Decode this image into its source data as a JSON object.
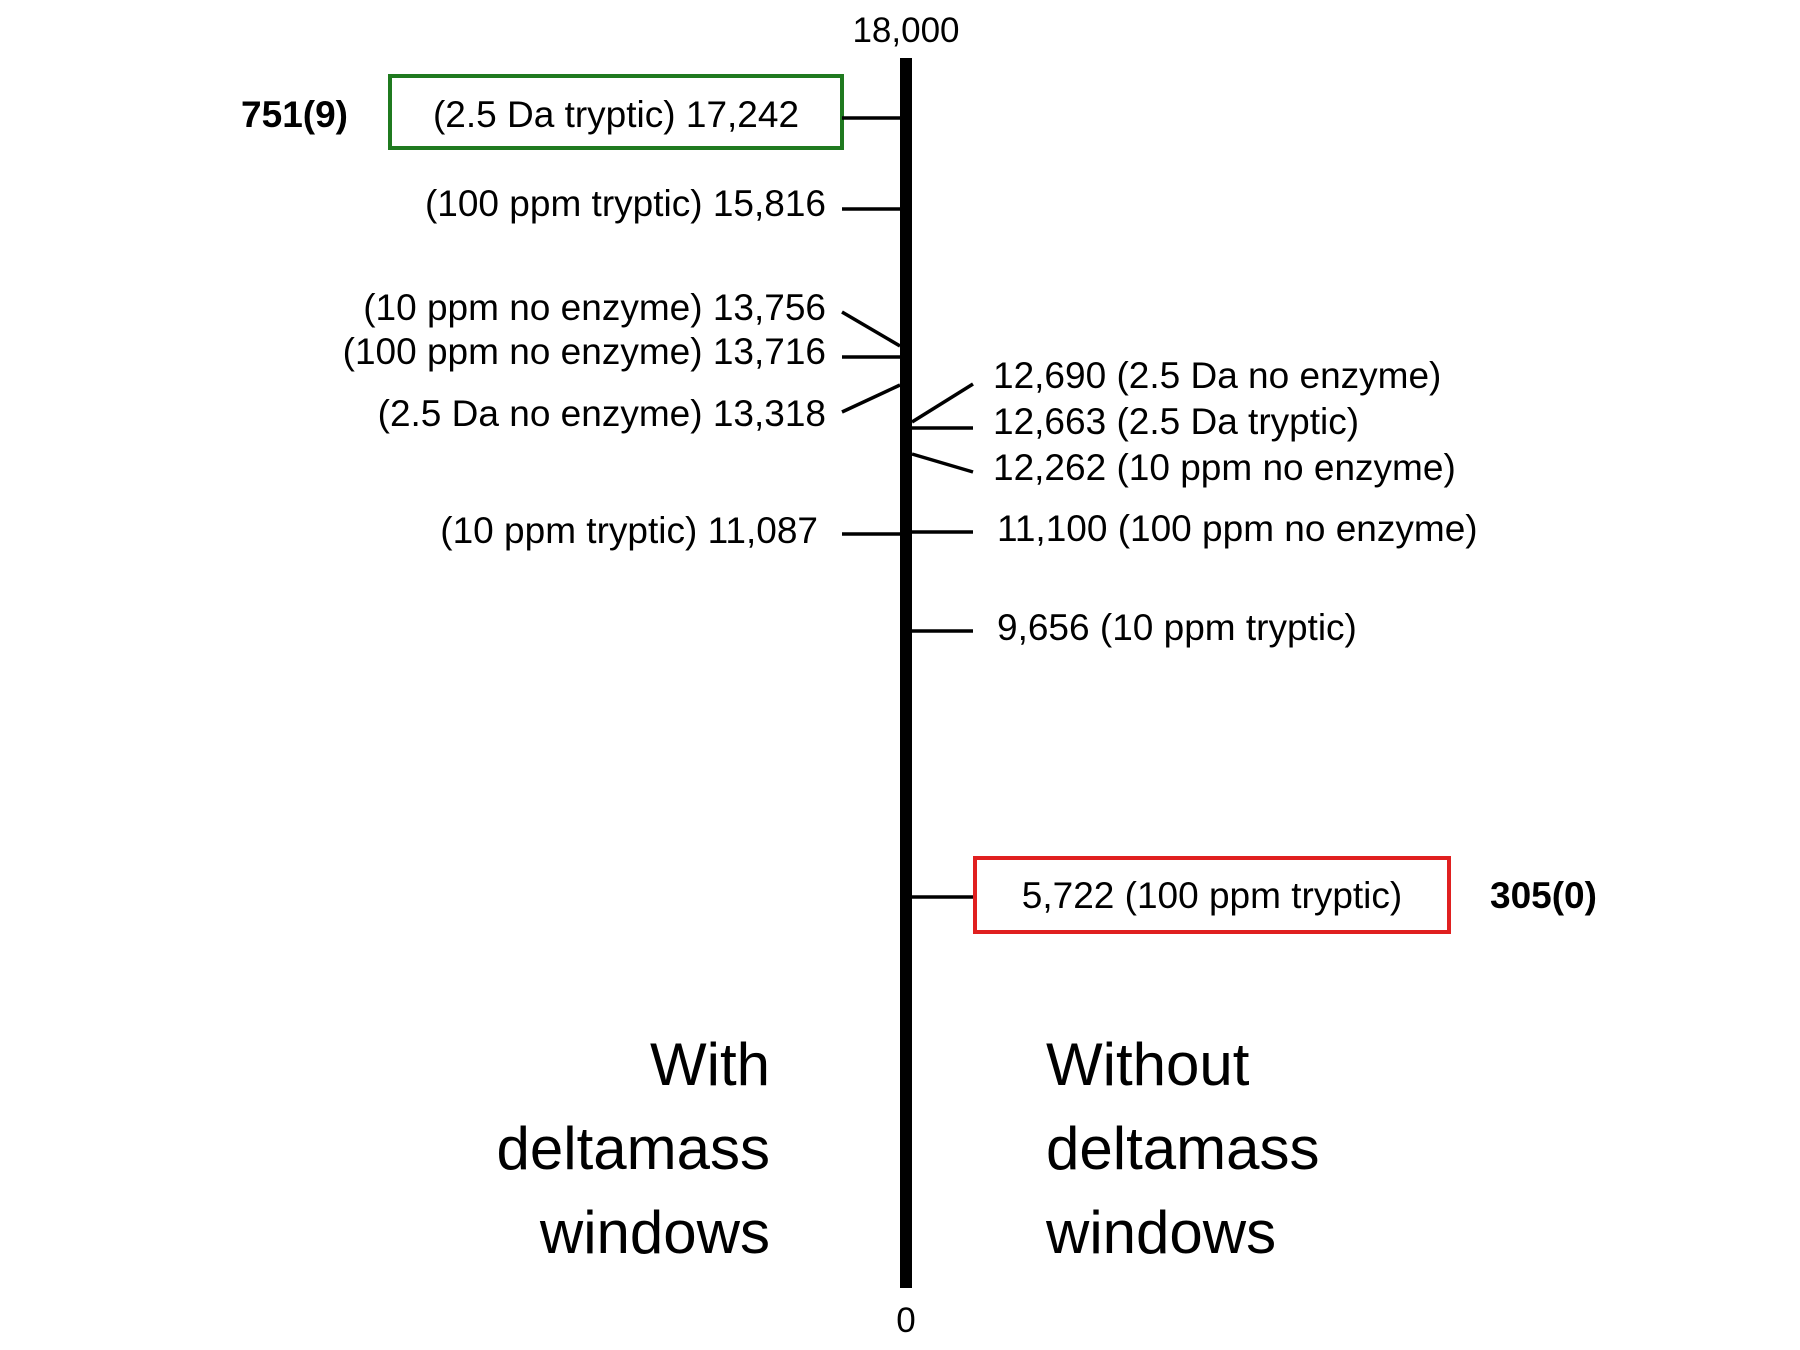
{
  "axis": {
    "top_label": "18,000",
    "bottom_label": "0",
    "max": 18000,
    "min": 0
  },
  "colors": {
    "highlight_best": "#1f7a1f",
    "highlight_worst": "#e02020",
    "axis": "#000000"
  },
  "with_windows": {
    "footer": [
      "With",
      "deltamass",
      "windows"
    ],
    "entries": [
      {
        "text": "(2.5 Da tryptic) 17,242",
        "value": 17242,
        "highlight": "best",
        "note": "751(9)"
      },
      {
        "text": "(100 ppm tryptic) 15,816",
        "value": 15816
      },
      {
        "text": "(10 ppm no enzyme) 13,756",
        "value": 13756
      },
      {
        "text": "(100 ppm no enzyme) 13,716",
        "value": 13716
      },
      {
        "text": "(2.5 Da no enzyme) 13,318",
        "value": 13318
      },
      {
        "text": "(10 ppm tryptic) 11,087",
        "value": 11087
      }
    ]
  },
  "without_windows": {
    "footer": [
      "Without",
      "deltamass",
      "windows"
    ],
    "entries": [
      {
        "text": "12,690 (2.5 Da no enzyme)",
        "value": 12690
      },
      {
        "text": "12,663 (2.5 Da tryptic)",
        "value": 12663
      },
      {
        "text": "12,262 (10 ppm no enzyme)",
        "value": 12262
      },
      {
        "text": "11,100 (100 ppm no enzyme)",
        "value": 11100
      },
      {
        "text": "9,656 (10 ppm tryptic)",
        "value": 9656
      },
      {
        "text": "5,722 (100 ppm tryptic)",
        "value": 5722,
        "highlight": "worst",
        "note": "305(0)"
      }
    ]
  }
}
